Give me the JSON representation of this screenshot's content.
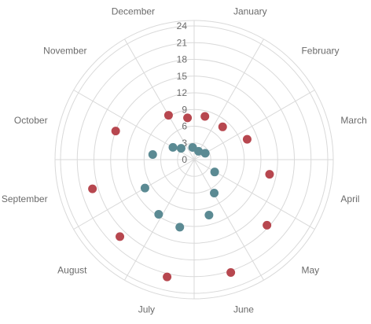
{
  "chart_data": {
    "type": "scatter",
    "subtype": "polar",
    "categories": [
      "January",
      "February",
      "March",
      "April",
      "May",
      "June",
      "July",
      "August",
      "September",
      "October",
      "November",
      "December"
    ],
    "radial_axis": {
      "min": 0,
      "max": 24,
      "ticks": [
        0,
        3,
        6,
        9,
        12,
        15,
        18,
        21,
        24
      ]
    },
    "grid": true,
    "legend": "none",
    "series": [
      {
        "color": "#b7474f",
        "values": [
          {
            "angle": 14,
            "r": 8
          },
          {
            "angle": 41,
            "r": 7.8
          },
          {
            "angle": 69,
            "r": 10.2
          },
          {
            "angle": 101,
            "r": 13.8
          },
          {
            "angle": 132,
            "r": 17.6
          },
          {
            "angle": 162,
            "r": 21.3
          },
          {
            "angle": 193,
            "r": 21.6
          },
          {
            "angle": 224,
            "r": 19.2
          },
          {
            "angle": 254,
            "r": 19
          },
          {
            "angle": 290,
            "r": 15
          },
          {
            "angle": 330,
            "r": 9.2
          },
          {
            "angle": 351,
            "r": 7.6
          }
        ]
      },
      {
        "color": "#5b8a93",
        "values": [
          {
            "angle": 60,
            "r": 2.3
          },
          {
            "angle": 121,
            "r": 4.3
          },
          {
            "angle": 149,
            "r": 7
          },
          {
            "angle": 165,
            "r": 10.3
          },
          {
            "angle": 192,
            "r": 12.4
          },
          {
            "angle": 213,
            "r": 11.7
          },
          {
            "angle": 240,
            "r": 10.2
          },
          {
            "angle": 277,
            "r": 7.5
          },
          {
            "angle": 300,
            "r": 4.4
          },
          {
            "angle": 311,
            "r": 3.1
          },
          {
            "angle": 353,
            "r": 2.2
          },
          {
            "angle": 28,
            "r": 1.7
          }
        ]
      }
    ]
  }
}
